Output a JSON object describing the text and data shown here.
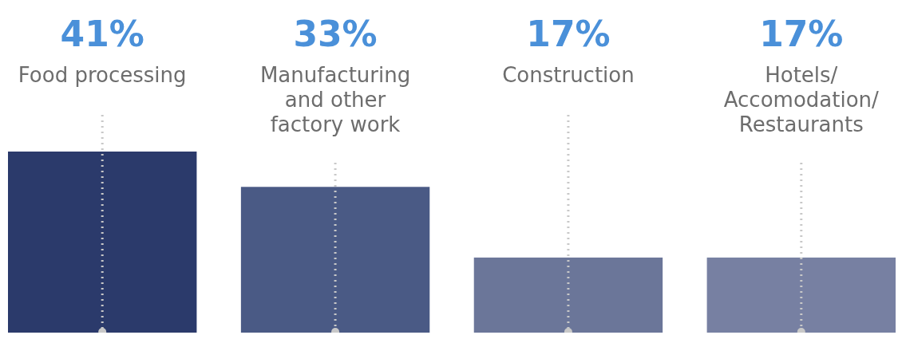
{
  "chart_data": {
    "type": "bar",
    "categories": [
      "Food processing",
      "Manufacturing and other factory work",
      "Construction",
      "Hotels/ Accomodation/ Restaurants"
    ],
    "values": [
      41,
      33,
      17,
      17
    ],
    "colors": [
      "#2b3a6b",
      "#4a5a85",
      "#6b7699",
      "#7780a2"
    ],
    "ylim": [
      0,
      41
    ],
    "tick_labels": "x",
    "grid": "x",
    "value_labels": [
      "41%",
      "33%",
      "17%",
      "17%"
    ]
  }
}
